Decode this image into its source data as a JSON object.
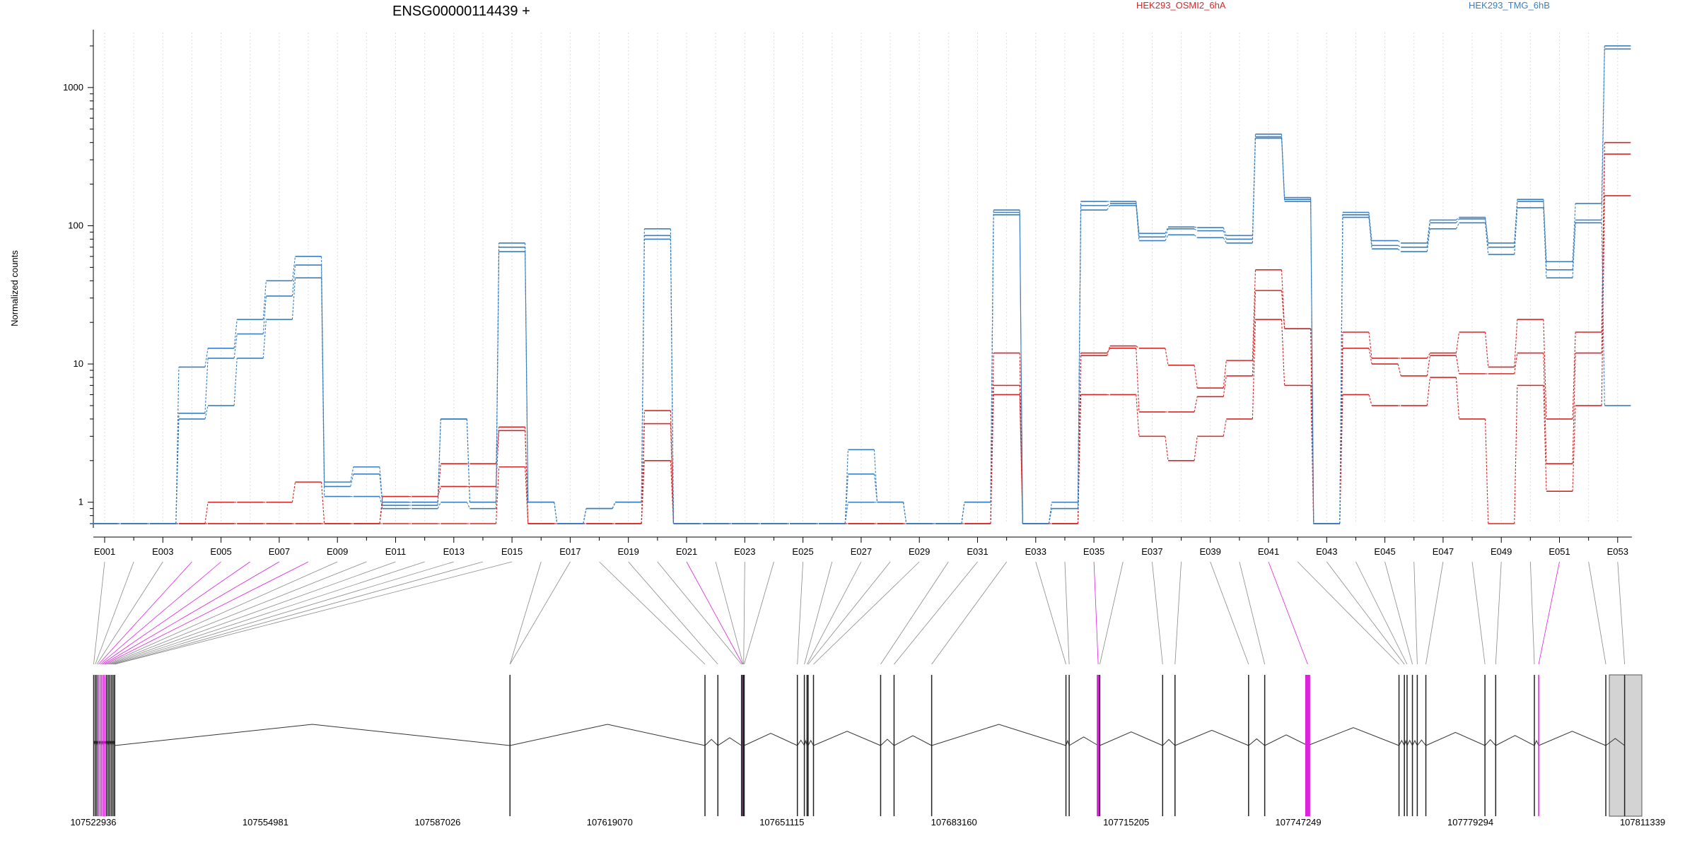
{
  "chart_data": {
    "type": "line",
    "title": "ENSG00000114439 +",
    "ylabel": "Normalized counts",
    "yscale": "log",
    "ylim": [
      0.7,
      2500
    ],
    "yticks": [
      1,
      10,
      100,
      1000
    ],
    "ytick_labels": [
      "1",
      "10",
      "100",
      "1000"
    ],
    "grid": "vertical dotted lines per exon",
    "legend_placement": "top",
    "colors": {
      "condition_a": "#d62728",
      "condition_b": "#3a7fc1",
      "highlight": "#dd22dd",
      "exon_fill": "#d3d3d3"
    },
    "categories": [
      "E001",
      "E002",
      "E003",
      "E004",
      "E005",
      "E006",
      "E007",
      "E008",
      "E009",
      "E010",
      "E011",
      "E012",
      "E013",
      "E014",
      "E015",
      "E016",
      "E017",
      "E018",
      "E019",
      "E020",
      "E021",
      "E022",
      "E023",
      "E024",
      "E025",
      "E026",
      "E027",
      "E028",
      "E029",
      "E030",
      "E031",
      "E032",
      "E033",
      "E034",
      "E035",
      "E036",
      "E037",
      "E038",
      "E039",
      "E040",
      "E041",
      "E042",
      "E043",
      "E044",
      "E045",
      "E046",
      "E047",
      "E048",
      "E049",
      "E050",
      "E051",
      "E052",
      "E053"
    ],
    "xtick_labels": [
      "E001",
      "E003",
      "E005",
      "E007",
      "E009",
      "E011",
      "E013",
      "E015",
      "E017",
      "E019",
      "E021",
      "E023",
      "E025",
      "E027",
      "E029",
      "E031",
      "E033",
      "E035",
      "E037",
      "E039",
      "E041",
      "E043",
      "E045",
      "E047",
      "E049",
      "E051",
      "E053"
    ],
    "series": [
      {
        "name": "HEK293_OSMI2_6hA",
        "color": "#d62728",
        "values": [
          0.7,
          0.7,
          0.7,
          0.7,
          1,
          1,
          1,
          1.4,
          0.7,
          0.7,
          1,
          1,
          1.9,
          1.9,
          3.5,
          0.7,
          0.7,
          0.7,
          0.7,
          4.6,
          0.7,
          0.7,
          0.7,
          0.7,
          0.7,
          0.7,
          0.7,
          0.7,
          0.7,
          0.7,
          0.7,
          12,
          0.7,
          0.7,
          11.5,
          13.5,
          13,
          9.8,
          6.7,
          10.6,
          48,
          18,
          0.7,
          17,
          11,
          11,
          12,
          17,
          9.5,
          21,
          4,
          17,
          400
        ]
      },
      {
        "name": "",
        "color": "#d62728",
        "values": [
          0.7,
          0.7,
          0.7,
          0.7,
          0.7,
          0.7,
          0.7,
          0.7,
          0.7,
          0.7,
          1.1,
          1.1,
          1.3,
          1.3,
          3.3,
          0.7,
          0.7,
          0.7,
          0.7,
          3.7,
          0.7,
          0.7,
          0.7,
          0.7,
          0.7,
          0.7,
          0.7,
          0.7,
          0.7,
          0.7,
          0.7,
          7,
          0.7,
          0.7,
          12,
          13,
          4.5,
          4.5,
          5.8,
          8.2,
          34,
          18,
          0.7,
          13,
          10,
          8.2,
          11.5,
          8.5,
          8.5,
          12,
          1.9,
          12,
          330
        ]
      },
      {
        "name": "",
        "color": "#d62728",
        "values": [
          0.7,
          0.7,
          0.7,
          0.7,
          0.7,
          0.7,
          0.7,
          0.7,
          0.7,
          0.7,
          0.7,
          0.7,
          0.7,
          0.7,
          1.8,
          0.7,
          0.7,
          0.7,
          0.7,
          2,
          0.7,
          0.7,
          0.7,
          0.7,
          0.7,
          0.7,
          0.7,
          0.7,
          0.7,
          0.7,
          0.7,
          6,
          0.7,
          0.7,
          6,
          6,
          3,
          2,
          3,
          4,
          21,
          7,
          0.7,
          6,
          5,
          5,
          8,
          4,
          0.7,
          7,
          1.2,
          5,
          165
        ]
      },
      {
        "name": "HEK293_TMG_6hB",
        "color": "#3a7fc1",
        "values": [
          0.7,
          0.7,
          0.7,
          9.5,
          13,
          21,
          40,
          60,
          1.4,
          1.8,
          1,
          1,
          4,
          1,
          75,
          1,
          0.7,
          0.9,
          1,
          95,
          0.7,
          0.7,
          0.7,
          0.7,
          0.7,
          0.7,
          2.4,
          1,
          0.7,
          0.7,
          1,
          130,
          0.7,
          1,
          150,
          150,
          88,
          98,
          97,
          85,
          460,
          160,
          0.7,
          125,
          78,
          75,
          110,
          115,
          75,
          155,
          55,
          145,
          2000
        ]
      },
      {
        "name": "",
        "color": "#3a7fc1",
        "values": [
          0.7,
          0.7,
          0.7,
          4.4,
          11,
          16.5,
          31,
          52,
          1.3,
          1.6,
          0.95,
          0.95,
          4,
          1,
          70,
          1,
          0.7,
          0.9,
          1,
          85,
          0.7,
          0.7,
          0.7,
          0.7,
          0.7,
          0.7,
          1.6,
          1,
          0.7,
          0.7,
          1,
          125,
          0.7,
          0.9,
          140,
          145,
          83,
          95,
          92,
          80,
          440,
          155,
          0.7,
          120,
          72,
          70,
          105,
          112,
          70,
          150,
          48,
          110,
          1900
        ]
      },
      {
        "name": "",
        "color": "#3a7fc1",
        "values": [
          0.7,
          0.7,
          0.7,
          4,
          5,
          11,
          21,
          42,
          1.1,
          1.1,
          0.9,
          0.9,
          1,
          0.9,
          65,
          1,
          0.7,
          0.9,
          1,
          80,
          0.7,
          0.7,
          0.7,
          0.7,
          0.7,
          0.7,
          1,
          1,
          0.7,
          0.7,
          1,
          120,
          0.7,
          0.9,
          130,
          140,
          78,
          86,
          82,
          75,
          430,
          150,
          0.7,
          115,
          68,
          65,
          95,
          105,
          62,
          135,
          42,
          105,
          5
        ]
      }
    ],
    "genomic_ticks": [
      107522936,
      107554981,
      107587026,
      107619070,
      107651115,
      107683160,
      107715205,
      107747249,
      107779294,
      107811339
    ],
    "genomic_tick_labels": [
      "107522936",
      "107554981",
      "107587026",
      "107619070",
      "107651115",
      "107683160",
      "107715205",
      "107747249",
      "107779294",
      "107811339"
    ],
    "exon_positions": [
      107523000,
      107523300,
      107523600,
      107523900,
      107524200,
      107524500,
      107524800,
      107525100,
      107525400,
      107525700,
      107526000,
      107526300,
      107526600,
      107526900,
      107526900,
      107600500,
      107600500,
      107636800,
      107639200,
      107643600,
      107643800,
      107643900,
      107644000,
      107644100,
      107654000,
      107655300,
      107655800,
      107656000,
      107657000,
      107669500,
      107672000,
      107679000,
      107704000,
      107704600,
      107710000,
      107710300,
      107722000,
      107724300,
      107738000,
      107741000,
      107749000,
      107766000,
      107767000,
      107767500,
      107768500,
      107769400,
      107771000,
      107782000,
      107784000,
      107791200,
      107792000,
      107804500,
      107808000
    ],
    "highlighted_exons": [
      "E004",
      "E005",
      "E006",
      "E007",
      "E008",
      "E021",
      "E035",
      "E041",
      "E051"
    ],
    "junctions_from_first": true
  }
}
